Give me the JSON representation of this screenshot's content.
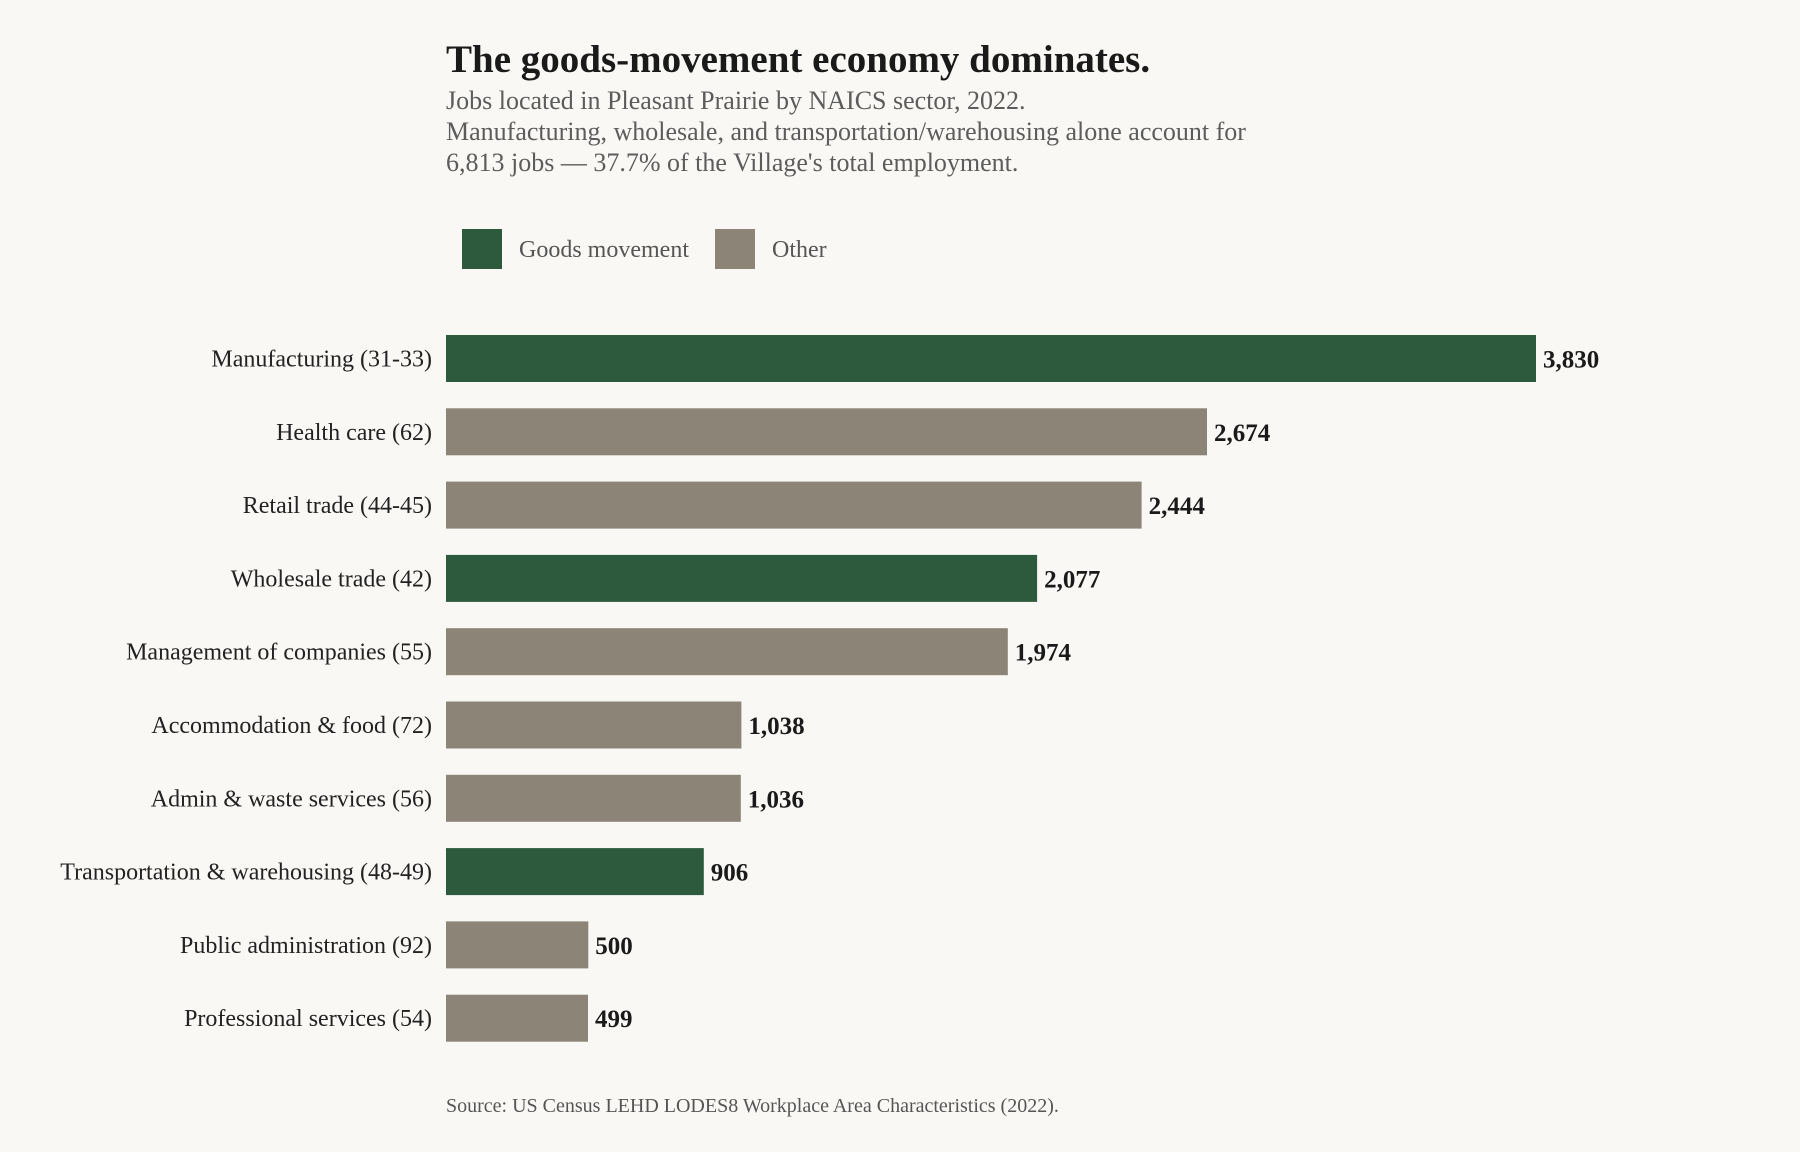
{
  "colors": {
    "background": "#f9f8f4",
    "goods_movement": "#2d5a3d",
    "other": "#8b8477"
  },
  "chart_data": {
    "type": "bar",
    "orientation": "horizontal",
    "title": "The goods-movement economy dominates.",
    "subtitle_lines": [
      "Jobs located in Pleasant Prairie by NAICS sector, 2022.",
      "Manufacturing, wholesale, and transportation/warehousing alone account for",
      "6,813 jobs — 37.7% of the Village's total employment."
    ],
    "legend": [
      {
        "key": "goods_movement",
        "label": "Goods movement"
      },
      {
        "key": "other",
        "label": "Other"
      }
    ],
    "legend_position": "top-left",
    "grid": false,
    "xlim": [
      0,
      3830
    ],
    "bars": [
      {
        "category": "Manufacturing (31-33)",
        "value": 3830,
        "value_label": "3,830",
        "group": "goods_movement"
      },
      {
        "category": "Health care (62)",
        "value": 2674,
        "value_label": "2,674",
        "group": "other"
      },
      {
        "category": "Retail trade (44-45)",
        "value": 2444,
        "value_label": "2,444",
        "group": "other"
      },
      {
        "category": "Wholesale trade (42)",
        "value": 2077,
        "value_label": "2,077",
        "group": "goods_movement"
      },
      {
        "category": "Management of companies (55)",
        "value": 1974,
        "value_label": "1,974",
        "group": "other"
      },
      {
        "category": "Accommodation & food (72)",
        "value": 1038,
        "value_label": "1,038",
        "group": "other"
      },
      {
        "category": "Admin & waste services (56)",
        "value": 1036,
        "value_label": "1,036",
        "group": "other"
      },
      {
        "category": "Transportation & warehousing (48-49)",
        "value": 906,
        "value_label": "906",
        "group": "goods_movement"
      },
      {
        "category": "Public administration (92)",
        "value": 500,
        "value_label": "500",
        "group": "other"
      },
      {
        "category": "Professional services (54)",
        "value": 499,
        "value_label": "499",
        "group": "other"
      }
    ],
    "source": "Source: US Census LEHD LODES8 Workplace Area Characteristics (2022)."
  }
}
